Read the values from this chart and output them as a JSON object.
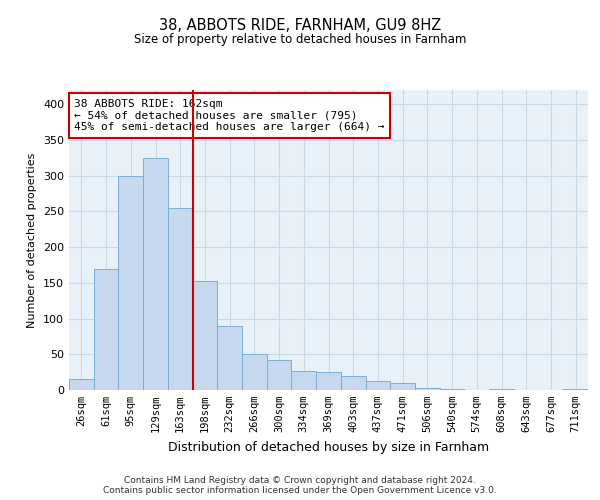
{
  "title": "38, ABBOTS RIDE, FARNHAM, GU9 8HZ",
  "subtitle": "Size of property relative to detached houses in Farnham",
  "xlabel": "Distribution of detached houses by size in Farnham",
  "ylabel": "Number of detached properties",
  "categories": [
    "26sqm",
    "61sqm",
    "95sqm",
    "129sqm",
    "163sqm",
    "198sqm",
    "232sqm",
    "266sqm",
    "300sqm",
    "334sqm",
    "369sqm",
    "403sqm",
    "437sqm",
    "471sqm",
    "506sqm",
    "540sqm",
    "574sqm",
    "608sqm",
    "643sqm",
    "677sqm",
    "711sqm"
  ],
  "bar_heights": [
    15,
    170,
    300,
    325,
    255,
    152,
    90,
    50,
    42,
    27,
    25,
    20,
    12,
    10,
    3,
    2,
    0,
    1,
    0,
    0,
    1
  ],
  "bar_color": "#c5d8ed",
  "bar_edge_color": "#7aafd4",
  "grid_color": "#c8d8e8",
  "background_color": "#e8f0f8",
  "vline_color": "#cc0000",
  "annotation_text": "38 ABBOTS RIDE: 162sqm\n← 54% of detached houses are smaller (795)\n45% of semi-detached houses are larger (664) →",
  "annotation_box_color": "#ffffff",
  "annotation_box_edge": "#cc0000",
  "ylim": [
    0,
    420
  ],
  "yticks": [
    0,
    50,
    100,
    150,
    200,
    250,
    300,
    350,
    400
  ],
  "footer_line1": "Contains HM Land Registry data © Crown copyright and database right 2024.",
  "footer_line2": "Contains public sector information licensed under the Open Government Licence v3.0."
}
